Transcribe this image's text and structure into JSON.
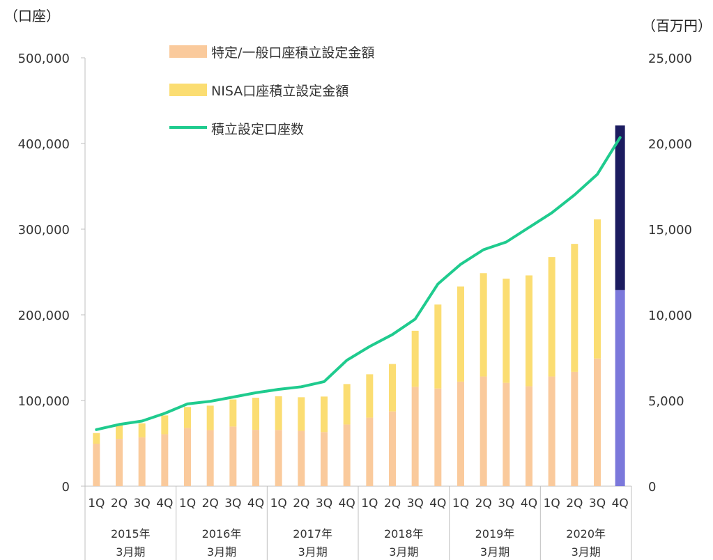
{
  "chart_data": {
    "type": "bar+line",
    "left_axis_unit": "（口座）",
    "right_axis_unit": "（百万円）",
    "left_ylim": [
      0,
      500000
    ],
    "right_ylim": [
      0,
      25000
    ],
    "left_ticks": [
      "0",
      "100,000",
      "200,000",
      "300,000",
      "400,000",
      "500,000"
    ],
    "right_ticks": [
      "0",
      "5,000",
      "10,000",
      "15,000",
      "20,000",
      "25,000"
    ],
    "quarters": [
      "1Q",
      "2Q",
      "3Q",
      "4Q",
      "1Q",
      "2Q",
      "3Q",
      "4Q",
      "1Q",
      "2Q",
      "3Q",
      "4Q",
      "1Q",
      "2Q",
      "3Q",
      "4Q",
      "1Q",
      "2Q",
      "3Q",
      "4Q",
      "1Q",
      "2Q",
      "3Q",
      "4Q"
    ],
    "years": [
      {
        "line1": "2015年",
        "line2": "3月期"
      },
      {
        "line1": "2016年",
        "line2": "3月期"
      },
      {
        "line1": "2017年",
        "line2": "3月期"
      },
      {
        "line1": "2018年",
        "line2": "3月期"
      },
      {
        "line1": "2019年",
        "line2": "3月期"
      },
      {
        "line1": "2020年",
        "line2": "3月期"
      }
    ],
    "legend": [
      {
        "label": "特定/一般口座積立設定金額",
        "color": "#FACA9C",
        "kind": "bar"
      },
      {
        "label": "NISA口座積立設定金額",
        "color": "#FBDD72",
        "kind": "bar"
      },
      {
        "label": "積立設定口座数",
        "color": "#1FCB8E",
        "kind": "line"
      }
    ],
    "series": [
      {
        "name": "特定/一般口座積立設定金額",
        "axis": "right",
        "color": "#FACA9C",
        "values": [
          2480,
          2760,
          2850,
          3030,
          3400,
          3270,
          3480,
          3290,
          3280,
          3230,
          3160,
          3600,
          4000,
          4360,
          5800,
          5700,
          6100,
          6400,
          6030,
          5830,
          6400,
          6670,
          7450,
          null
        ]
      },
      {
        "name": "NISA口座積立設定金額",
        "axis": "right",
        "color": "#FBDD72",
        "values": [
          620,
          850,
          820,
          1100,
          1220,
          1430,
          1580,
          1870,
          1970,
          1960,
          2070,
          2360,
          2530,
          2770,
          3270,
          4900,
          5550,
          6030,
          6080,
          6470,
          6970,
          7470,
          8120,
          null
        ]
      },
      {
        "name": "積立設定口座数",
        "axis": "left",
        "color": "#1FCB8E",
        "values": [
          66000,
          72000,
          76000,
          85000,
          96000,
          99000,
          104000,
          109000,
          113000,
          116000,
          122000,
          147000,
          163000,
          177000,
          195000,
          236000,
          259000,
          276000,
          285000,
          302000,
          319000,
          340000,
          364000,
          407000
        ]
      }
    ],
    "latest_bar": {
      "lower": 11450,
      "upper": 21050,
      "lower_color": "#7B78DB",
      "upper_color": "#1C1C60"
    }
  }
}
